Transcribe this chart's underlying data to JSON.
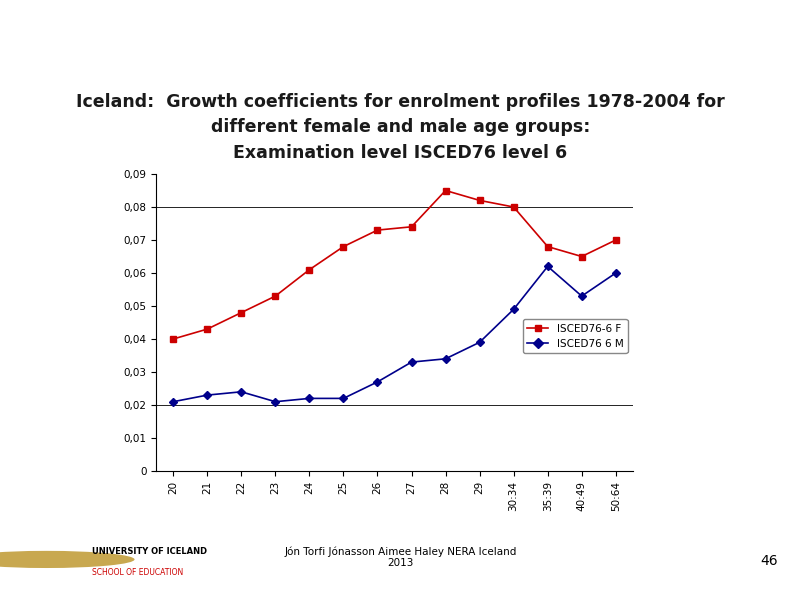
{
  "title_line1": "Iceland:  Growth coefficients for enrolment profiles 1978-2004 for",
  "title_line2": "different female and male age groups:",
  "title_line3": "Examination level ISCED76 level 6",
  "categories": [
    "20",
    "21",
    "22",
    "23",
    "24",
    "25",
    "26",
    "27",
    "28",
    "29",
    "30:34",
    "35:39",
    "40:49",
    "50:64"
  ],
  "female_values": [
    0.04,
    0.043,
    0.048,
    0.053,
    0.061,
    0.068,
    0.073,
    0.074,
    0.085,
    0.082,
    0.08,
    0.068,
    0.065,
    0.07
  ],
  "male_values": [
    0.021,
    0.023,
    0.024,
    0.021,
    0.022,
    0.022,
    0.027,
    0.033,
    0.034,
    0.039,
    0.049,
    0.062,
    0.053,
    0.06
  ],
  "female_color": "#CC0000",
  "male_color": "#00008B",
  "female_label": "ISCED76-6 F",
  "male_label": "ISCED76 6 M",
  "ylim": [
    0,
    0.09
  ],
  "yticks": [
    0,
    0.01,
    0.02,
    0.03,
    0.04,
    0.05,
    0.06,
    0.07,
    0.08,
    0.09
  ],
  "ytick_labels": [
    "0",
    "0,01",
    "0,02",
    "0,03",
    "0,04",
    "0,05",
    "0,06",
    "0,07",
    "0,08",
    "0,09"
  ],
  "bg_color": "#FFFFFF",
  "plot_bg_color": "#FFFFFF",
  "footer_text": "Jón Torfi Jónasson Aimee Haley NERA Iceland\n2013",
  "page_number": "46",
  "header_color": "#9B1B1B",
  "title_color": "#1A1A1A"
}
